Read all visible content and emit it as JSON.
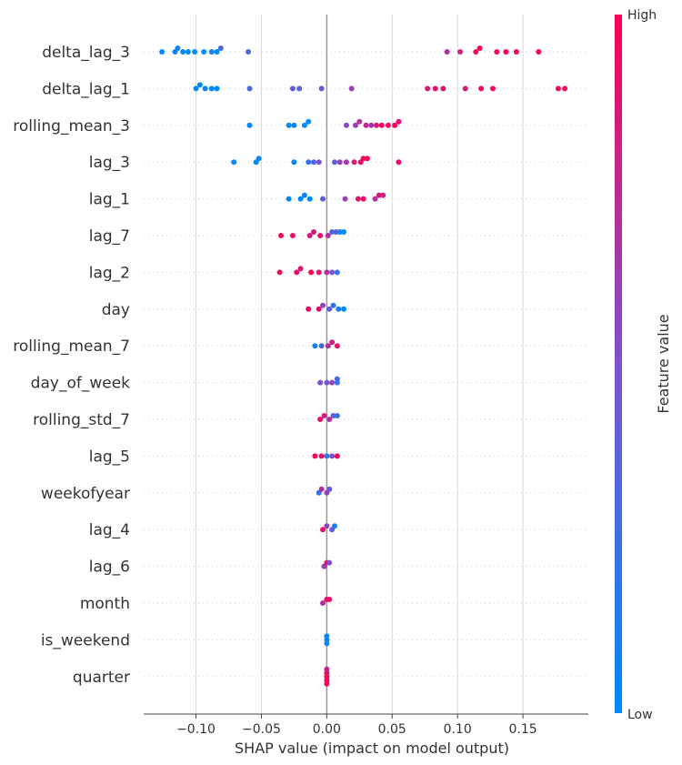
{
  "chart_data": {
    "type": "scatter",
    "subtype": "shap-beeswarm",
    "title": "",
    "xlabel": "SHAP value (impact on model output)",
    "xlim": [
      -0.14,
      0.2
    ],
    "xticks": [
      -0.1,
      -0.05,
      0.0,
      0.05,
      0.1,
      0.15
    ],
    "xtick_labels": [
      "−0.10",
      "−0.05",
      "0.00",
      "0.05",
      "0.10",
      "0.15"
    ],
    "colorbar": {
      "label": "Feature value",
      "high_label": "High",
      "low_label": "Low",
      "low_color": "#008bfb",
      "mid_color": "#7c51ce",
      "high_color": "#ff0052"
    },
    "features": [
      {
        "name": "delta_lag_3",
        "points": [
          [
            -0.126,
            0.0
          ],
          [
            -0.116,
            0.12
          ],
          [
            -0.114,
            0.05
          ],
          [
            -0.11,
            0.0
          ],
          [
            -0.106,
            0.0
          ],
          [
            -0.101,
            0.0
          ],
          [
            -0.094,
            0.0
          ],
          [
            -0.088,
            0.1
          ],
          [
            -0.084,
            0.0
          ],
          [
            -0.081,
            0.3
          ],
          [
            -0.06,
            0.3
          ],
          [
            0.092,
            0.7
          ],
          [
            0.102,
            0.8
          ],
          [
            0.114,
            0.95
          ],
          [
            0.117,
            0.97
          ],
          [
            0.13,
            0.95
          ],
          [
            0.137,
            1.0
          ],
          [
            0.145,
            0.95
          ],
          [
            0.162,
            1.0
          ]
        ]
      },
      {
        "name": "delta_lag_1",
        "points": [
          [
            -0.1,
            0.0
          ],
          [
            -0.097,
            0.0
          ],
          [
            -0.093,
            0.05
          ],
          [
            -0.088,
            0.0
          ],
          [
            -0.084,
            0.0
          ],
          [
            -0.059,
            0.3
          ],
          [
            -0.026,
            0.4
          ],
          [
            -0.021,
            0.35
          ],
          [
            -0.004,
            0.45
          ],
          [
            0.019,
            0.6
          ],
          [
            0.077,
            0.85
          ],
          [
            0.083,
            0.9
          ],
          [
            0.089,
            0.9
          ],
          [
            0.106,
            0.85
          ],
          [
            0.118,
            0.95
          ],
          [
            0.127,
            0.95
          ],
          [
            0.177,
            1.0
          ],
          [
            0.182,
            0.95
          ]
        ]
      },
      {
        "name": "rolling_mean_3",
        "points": [
          [
            -0.059,
            0.0
          ],
          [
            -0.029,
            0.0
          ],
          [
            -0.025,
            0.05
          ],
          [
            -0.017,
            0.0
          ],
          [
            -0.014,
            0.0
          ],
          [
            0.015,
            0.55
          ],
          [
            0.022,
            0.6
          ],
          [
            0.025,
            0.7
          ],
          [
            0.03,
            0.75
          ],
          [
            0.034,
            0.65
          ],
          [
            0.038,
            0.85
          ],
          [
            0.042,
            0.95
          ],
          [
            0.047,
            0.95
          ],
          [
            0.052,
            1.0
          ],
          [
            0.055,
            0.9
          ]
        ]
      },
      {
        "name": "lag_3",
        "points": [
          [
            -0.071,
            0.0
          ],
          [
            -0.054,
            0.0
          ],
          [
            -0.052,
            0.05
          ],
          [
            -0.025,
            0.0
          ],
          [
            -0.014,
            0.2
          ],
          [
            -0.01,
            0.3
          ],
          [
            -0.006,
            0.5
          ],
          [
            0.006,
            0.4
          ],
          [
            0.01,
            0.6
          ],
          [
            0.015,
            0.65
          ],
          [
            0.021,
            0.85
          ],
          [
            0.026,
            0.9
          ],
          [
            0.028,
            0.95
          ],
          [
            0.031,
            0.95
          ],
          [
            0.055,
            0.9
          ]
        ]
      },
      {
        "name": "lag_1",
        "points": [
          [
            -0.029,
            0.0
          ],
          [
            -0.02,
            0.0
          ],
          [
            -0.017,
            0.05
          ],
          [
            -0.013,
            0.0
          ],
          [
            -0.003,
            0.4
          ],
          [
            0.014,
            0.6
          ],
          [
            0.024,
            0.9
          ],
          [
            0.028,
            0.95
          ],
          [
            0.037,
            0.7
          ],
          [
            0.04,
            0.85
          ],
          [
            0.043,
            0.8
          ]
        ]
      },
      {
        "name": "lag_7",
        "points": [
          [
            -0.035,
            0.95
          ],
          [
            -0.026,
            0.9
          ],
          [
            -0.013,
            0.8
          ],
          [
            -0.01,
            0.85
          ],
          [
            -0.005,
            0.9
          ],
          [
            0.001,
            0.7
          ],
          [
            0.004,
            0.3
          ],
          [
            0.007,
            0.4
          ],
          [
            0.01,
            0.1
          ],
          [
            0.013,
            0.0
          ]
        ]
      },
      {
        "name": "lag_2",
        "points": [
          [
            -0.036,
            0.95
          ],
          [
            -0.023,
            0.9
          ],
          [
            -0.02,
            0.85
          ],
          [
            -0.012,
            1.0
          ],
          [
            -0.006,
            0.9
          ],
          [
            0.0,
            0.7
          ],
          [
            0.004,
            0.5
          ],
          [
            0.008,
            0.2
          ]
        ]
      },
      {
        "name": "day",
        "points": [
          [
            -0.014,
            0.95
          ],
          [
            -0.006,
            0.9
          ],
          [
            -0.003,
            0.6
          ],
          [
            0.002,
            0.4
          ],
          [
            0.005,
            0.2
          ],
          [
            0.009,
            0.1
          ],
          [
            0.013,
            0.0
          ]
        ]
      },
      {
        "name": "rolling_mean_7",
        "points": [
          [
            -0.009,
            0.1
          ],
          [
            -0.004,
            0.3
          ],
          [
            0.001,
            0.7
          ],
          [
            0.004,
            0.8
          ],
          [
            0.008,
            0.9
          ]
        ]
      },
      {
        "name": "day_of_week",
        "points": [
          [
            -0.005,
            0.5
          ],
          [
            0.0,
            0.45
          ],
          [
            0.004,
            0.6
          ],
          [
            0.008,
            0.2
          ],
          [
            0.008,
            0.3
          ]
        ]
      },
      {
        "name": "rolling_std_7",
        "points": [
          [
            -0.005,
            0.9
          ],
          [
            -0.002,
            0.8
          ],
          [
            0.002,
            0.7
          ],
          [
            0.005,
            0.4
          ],
          [
            0.008,
            0.2
          ]
        ]
      },
      {
        "name": "lag_5",
        "points": [
          [
            -0.009,
            0.95
          ],
          [
            -0.004,
            0.9
          ],
          [
            0.0,
            0.2
          ],
          [
            0.004,
            0.5
          ],
          [
            0.008,
            0.95
          ]
        ]
      },
      {
        "name": "weekofyear",
        "points": [
          [
            -0.006,
            0.2
          ],
          [
            -0.004,
            0.7
          ],
          [
            0.0,
            0.6
          ],
          [
            0.002,
            0.4
          ]
        ]
      },
      {
        "name": "lag_4",
        "points": [
          [
            -0.003,
            0.9
          ],
          [
            0.0,
            0.6
          ],
          [
            0.004,
            0.4
          ],
          [
            0.006,
            0.1
          ]
        ]
      },
      {
        "name": "lag_6",
        "points": [
          [
            -0.002,
            0.6
          ],
          [
            0.0,
            0.9
          ],
          [
            0.002,
            0.5
          ]
        ]
      },
      {
        "name": "month",
        "points": [
          [
            -0.003,
            0.7
          ],
          [
            0.0,
            0.95
          ],
          [
            0.002,
            0.9
          ]
        ]
      },
      {
        "name": "is_weekend",
        "points": [
          [
            0.0,
            0.05
          ],
          [
            0.0,
            0.0
          ],
          [
            0.0,
            0.05
          ]
        ]
      },
      {
        "name": "quarter",
        "points": [
          [
            0.0,
            1.0
          ],
          [
            0.0,
            0.9
          ],
          [
            0.0,
            0.95
          ],
          [
            0.0,
            0.8
          ],
          [
            0.0,
            1.0
          ]
        ]
      }
    ]
  }
}
